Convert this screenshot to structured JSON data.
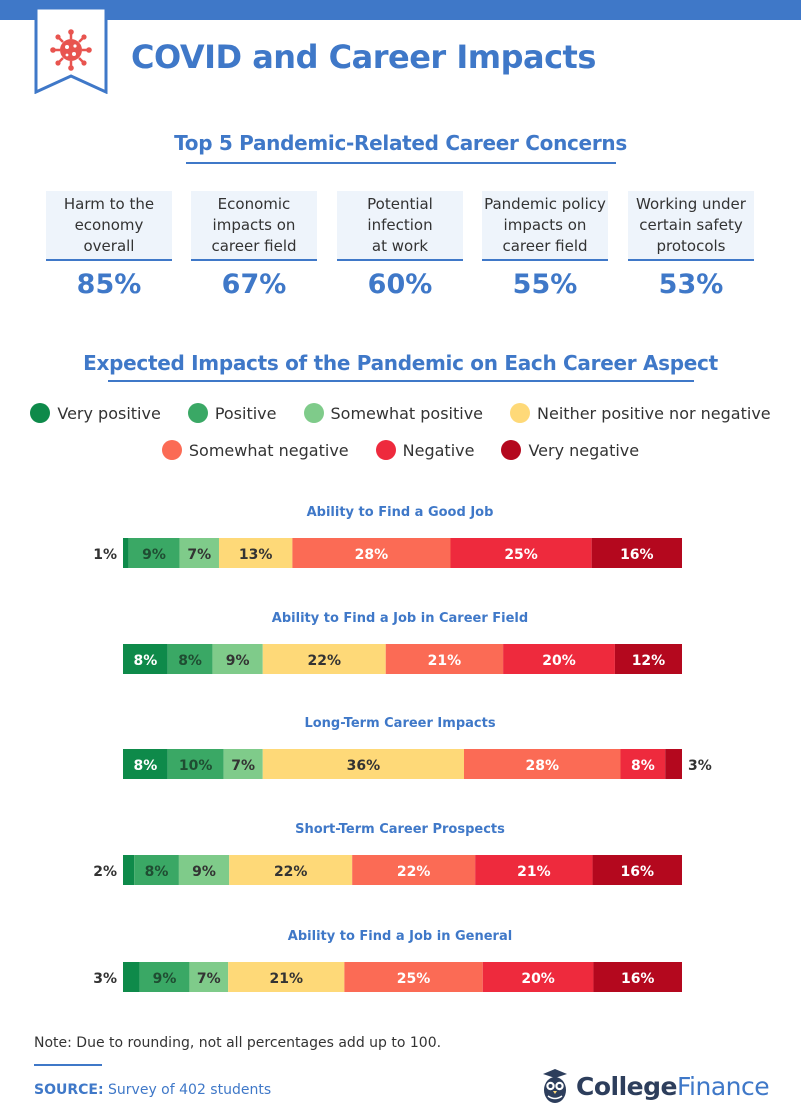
{
  "header": {
    "title": "COVID and Career Impacts",
    "colors": {
      "accent": "#3f78c8",
      "badge_virus": "#e8544f"
    }
  },
  "concerns": {
    "title": "Top 5 Pandemic-Related Career Concerns",
    "items": [
      {
        "label": "Harm to the\neconomy\noverall",
        "value": "85%"
      },
      {
        "label": "Economic\nimpacts on\ncareer field",
        "value": "67%"
      },
      {
        "label": "Potential\ninfection\nat work",
        "value": "60%"
      },
      {
        "label": "Pandemic policy\nimpacts on\ncareer field",
        "value": "55%"
      },
      {
        "label": "Working under\ncertain safety\nprotocols",
        "value": "53%"
      }
    ]
  },
  "impacts": {
    "title": "Expected Impacts of the Pandemic on Each Career Aspect"
  },
  "chart_data": {
    "type": "bar",
    "orientation": "horizontal",
    "stacked": true,
    "unit": "%",
    "legend": [
      {
        "name": "Very positive",
        "color": "#0e8a4a"
      },
      {
        "name": "Positive",
        "color": "#3aa865"
      },
      {
        "name": "Somewhat positive",
        "color": "#7fcb8a"
      },
      {
        "name": "Neither positive nor negative",
        "color": "#fed978"
      },
      {
        "name": "Somewhat negative",
        "color": "#fb6b55"
      },
      {
        "name": "Negative",
        "color": "#ee2a3d"
      },
      {
        "name": "Very negative",
        "color": "#b4081e"
      }
    ],
    "categories": [
      "Ability to Find a Good Job",
      "Ability to Find a Job in Career Field",
      "Long-Term Career Impacts",
      "Short-Term Career Prospects",
      "Ability to Find a Job in General"
    ],
    "series": [
      {
        "name": "Very positive",
        "values": [
          1,
          8,
          8,
          2,
          3
        ]
      },
      {
        "name": "Positive",
        "values": [
          9,
          8,
          10,
          8,
          9
        ]
      },
      {
        "name": "Somewhat positive",
        "values": [
          7,
          9,
          7,
          9,
          7
        ]
      },
      {
        "name": "Neither positive nor negative",
        "values": [
          13,
          22,
          36,
          22,
          21
        ]
      },
      {
        "name": "Somewhat negative",
        "values": [
          28,
          21,
          28,
          22,
          25
        ]
      },
      {
        "name": "Negative",
        "values": [
          25,
          20,
          8,
          21,
          20
        ]
      },
      {
        "name": "Very negative",
        "values": [
          16,
          12,
          3,
          16,
          16
        ]
      }
    ]
  },
  "footer": {
    "note": "Note: Due to rounding, not all percentages add up to 100.",
    "source_label": "SOURCE:",
    "source_text": "Survey of 402 students",
    "logo_word1": "College",
    "logo_word2": "Finance"
  }
}
